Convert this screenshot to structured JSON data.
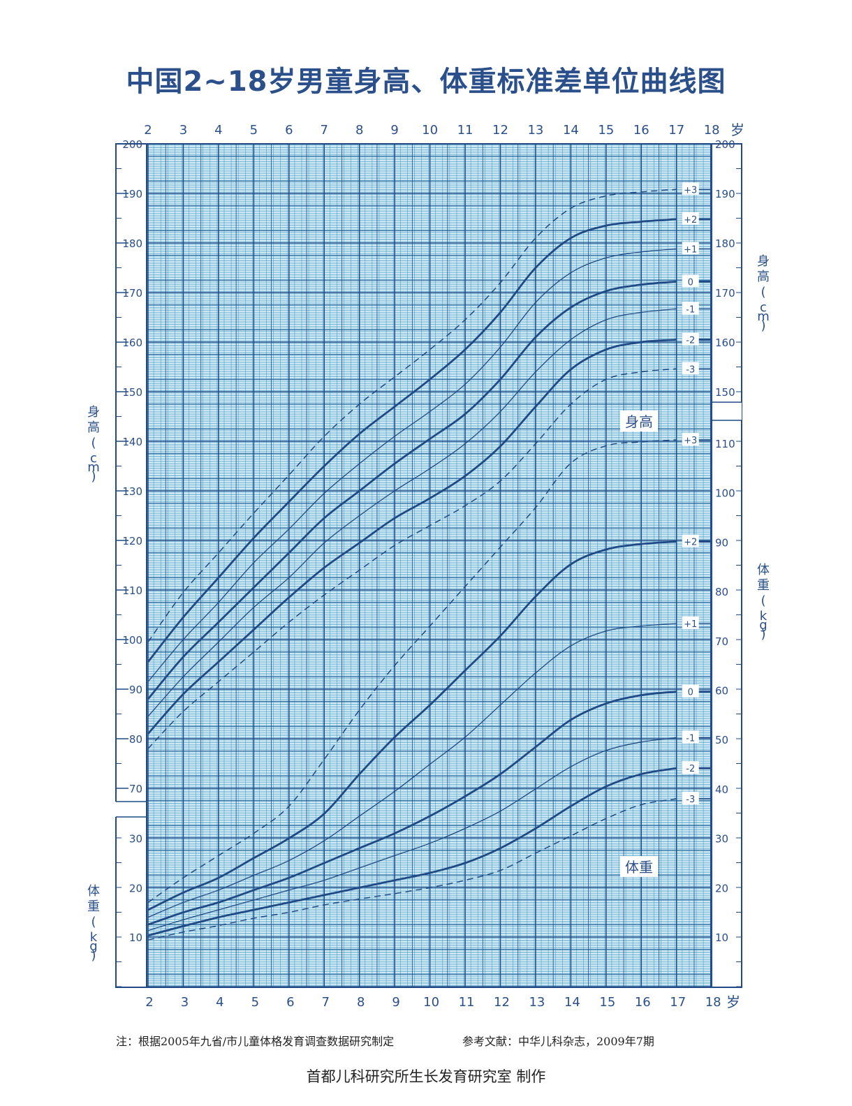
{
  "title": "中国2~18岁男童身高、体重标准差单位曲线图",
  "footer": {
    "note": "注：根据2005年九省/市儿童体格发育调查数据研究制定",
    "reference": "参考文献：中华儿科杂志，2009年7期",
    "maker": "首都儿科研究所生长发育研究室  制作"
  },
  "colors": {
    "grid_major": "#1f4a86",
    "grid_minor": "#3d9cc8",
    "curve": "#1f4a86",
    "text": "#2a4f8a"
  },
  "chart_data": {
    "type": "line",
    "title": "中国2~18岁男童身高、体重标准差单位曲线图",
    "x_label": "岁",
    "x_ticks": [
      2,
      3,
      4,
      5,
      6,
      7,
      8,
      9,
      10,
      11,
      12,
      13,
      14,
      15,
      16,
      17,
      18
    ],
    "height_axis": {
      "label": "身高（cm）",
      "ticks": [
        70,
        80,
        90,
        100,
        110,
        120,
        130,
        140,
        150,
        160,
        170,
        180,
        190,
        200
      ],
      "right_ticks": [
        150,
        160,
        170,
        180,
        190,
        200
      ]
    },
    "weight_axis": {
      "label": "体重（kg）",
      "ticks": [
        10,
        20,
        30
      ],
      "right_ticks": [
        10,
        20,
        30,
        40,
        50,
        60,
        70,
        80,
        90,
        100,
        110
      ]
    },
    "region_labels": {
      "height": "身高",
      "weight": "体重"
    },
    "ages": [
      2,
      3,
      4,
      5,
      6,
      7,
      8,
      9,
      10,
      11,
      12,
      13,
      14,
      15,
      16,
      17
    ],
    "height_series": [
      {
        "name": "+3",
        "style": "dashed",
        "values": [
          99.5,
          109.5,
          117.5,
          125.5,
          133.2,
          141,
          147.5,
          153,
          158.5,
          164.5,
          172,
          181,
          187,
          189.5,
          190.3,
          190.8
        ]
      },
      {
        "name": "+2",
        "style": "bold",
        "values": [
          95.5,
          104.5,
          112.5,
          120.5,
          127.8,
          135,
          141.5,
          147,
          152.5,
          158.5,
          166,
          175,
          181,
          183.5,
          184.3,
          184.8
        ]
      },
      {
        "name": "+1",
        "style": "thin",
        "values": [
          91.5,
          100,
          107.5,
          115.5,
          122.3,
          129.5,
          135.5,
          141,
          146,
          151.5,
          159,
          168,
          174,
          177,
          178.2,
          178.8
        ]
      },
      {
        "name": "0",
        "style": "bold",
        "values": [
          88,
          96.5,
          103.5,
          110.5,
          117.5,
          124.5,
          130,
          135.5,
          140.5,
          145.5,
          152.5,
          161,
          167,
          170.3,
          171.6,
          172.2
        ]
      },
      {
        "name": "-1",
        "style": "thin",
        "values": [
          84.5,
          92.5,
          99.5,
          106.5,
          112.5,
          119.5,
          125,
          130,
          134.5,
          139.5,
          146,
          154,
          160.5,
          164.5,
          166,
          166.7
        ]
      },
      {
        "name": "-2",
        "style": "bold",
        "values": [
          81,
          89,
          95.5,
          102,
          108.5,
          114.5,
          119.5,
          124.5,
          128.5,
          133,
          139,
          147,
          154.5,
          158.5,
          160,
          160.5
        ]
      },
      {
        "name": "-3",
        "style": "dashed",
        "values": [
          78,
          85.5,
          91.5,
          97.5,
          103.5,
          109,
          114,
          119,
          123,
          127,
          132,
          139.5,
          147.5,
          152.5,
          154,
          154.6
        ]
      }
    ],
    "weight_series": [
      {
        "name": "+3",
        "style": "dashed",
        "values": [
          17,
          22,
          26.5,
          31,
          36.5,
          46,
          56,
          65,
          73,
          81,
          89,
          97,
          106,
          109.5,
          110.3,
          110.7
        ]
      },
      {
        "name": "+2",
        "style": "bold",
        "values": [
          15.5,
          19,
          22,
          26,
          30,
          35,
          43,
          50.5,
          57,
          64,
          71,
          79,
          85.5,
          88.5,
          89.6,
          90.1
        ]
      },
      {
        "name": "+1",
        "style": "thin",
        "values": [
          14,
          17,
          19.5,
          22.5,
          25.5,
          29.5,
          34.5,
          39.5,
          45,
          50.5,
          57,
          63.5,
          69,
          72,
          73,
          73.5
        ]
      },
      {
        "name": "0",
        "style": "bold",
        "values": [
          12.5,
          15,
          17,
          19.5,
          22,
          25,
          28,
          31,
          34.5,
          38.5,
          43,
          48.5,
          54,
          57.3,
          59,
          59.7
        ]
      },
      {
        "name": "-1",
        "style": "thin",
        "values": [
          11.3,
          13.5,
          15.5,
          17.5,
          19.5,
          21.5,
          24,
          26.5,
          29,
          32,
          35.5,
          40,
          44.5,
          47.8,
          49.5,
          50.4
        ]
      },
      {
        "name": "-2",
        "style": "bold",
        "values": [
          10.3,
          12.2,
          14,
          15.5,
          17,
          18.5,
          20,
          21.5,
          23,
          25,
          28,
          32,
          36.5,
          40.5,
          43,
          44.2
        ]
      },
      {
        "name": "-3",
        "style": "dashed",
        "values": [
          9.4,
          11,
          12.3,
          13.8,
          15,
          16.5,
          17.7,
          18.8,
          20,
          21.5,
          23.5,
          27,
          30.5,
          34,
          36.8,
          38
        ]
      }
    ]
  }
}
